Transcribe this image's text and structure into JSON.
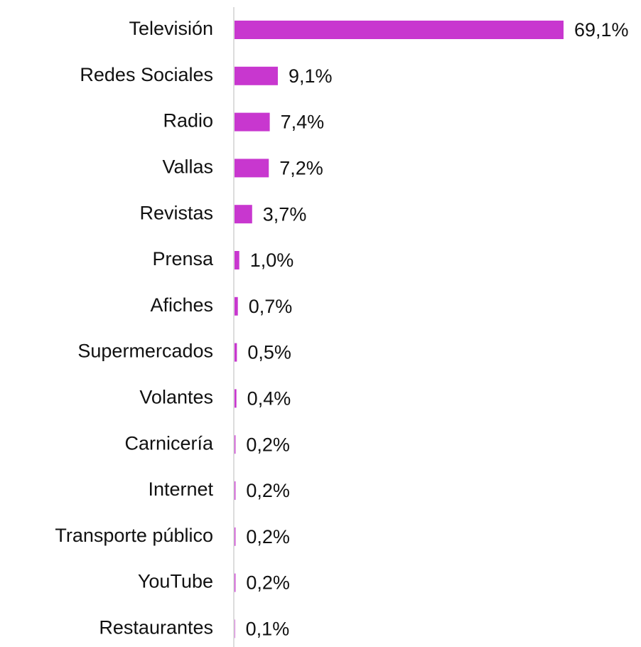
{
  "chart_data": {
    "type": "bar",
    "orientation": "horizontal",
    "categories": [
      "Televisión",
      "Redes Sociales",
      "Radio",
      "Vallas",
      "Revistas",
      "Prensa",
      "Afiches",
      "Supermercados",
      "Volantes",
      "Carnicería",
      "Internet",
      "Transporte público",
      "YouTube",
      "Restaurantes"
    ],
    "values": [
      69.1,
      9.1,
      7.4,
      7.2,
      3.7,
      1.0,
      0.7,
      0.5,
      0.4,
      0.2,
      0.2,
      0.2,
      0.2,
      0.1
    ],
    "value_labels": [
      "69,1%",
      "9,1%",
      "7,4%",
      "7,2%",
      "3,7%",
      "1,0%",
      "0,7%",
      "0,5%",
      "0,4%",
      "0,2%",
      "0,2%",
      "0,2%",
      "0,2%",
      "0,1%"
    ],
    "color": "#c837cf"
  }
}
